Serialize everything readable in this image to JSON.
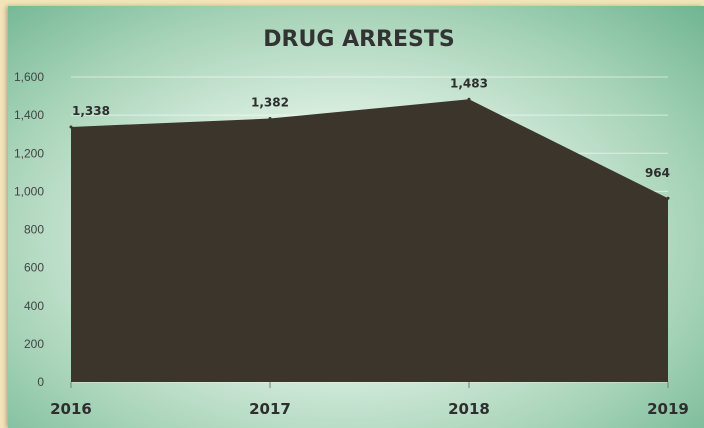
{
  "chart_data": {
    "type": "area",
    "title": "DRUG ARRESTS",
    "xlabel": "",
    "ylabel": "",
    "categories": [
      "2016",
      "2017",
      "2018",
      "2019"
    ],
    "values": [
      1338,
      1382,
      1483,
      964
    ],
    "data_labels": [
      "1,338",
      "1,382",
      "1,483",
      "964"
    ],
    "ylim": [
      0,
      1600
    ],
    "yticks": [
      0,
      200,
      400,
      600,
      800,
      1000,
      1200,
      1400,
      1600
    ],
    "ytick_labels": [
      "0",
      "200",
      "400",
      "600",
      "800",
      "1,000",
      "1,200",
      "1,400",
      "1,600"
    ],
    "grid": true,
    "legend": "none",
    "colors": {
      "area": "#3b352c",
      "background": "#cfe8d6",
      "border": "#f3e3b8"
    }
  }
}
